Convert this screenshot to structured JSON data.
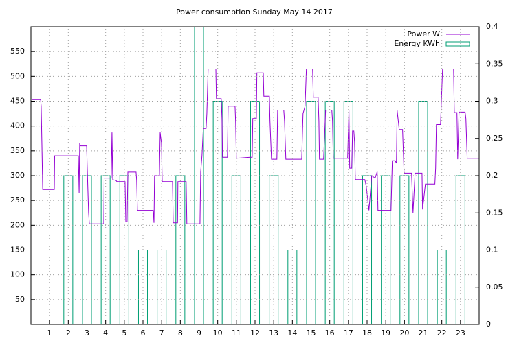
{
  "chart_data": {
    "type": "line",
    "title": "Power consumption Sunday May 14 2017",
    "xlim": [
      0,
      24
    ],
    "xticks": [
      1,
      2,
      3,
      4,
      5,
      6,
      7,
      8,
      9,
      10,
      11,
      12,
      13,
      14,
      15,
      16,
      17,
      18,
      19,
      20,
      21,
      22,
      23
    ],
    "ylim": [
      0,
      600
    ],
    "yticks": [
      50,
      100,
      150,
      200,
      250,
      300,
      350,
      400,
      450,
      500,
      550
    ],
    "y2lim": [
      0,
      0.4
    ],
    "y2ticks": [
      0,
      0.05,
      0.1,
      0.15,
      0.2,
      0.25,
      0.3,
      0.35,
      0.4
    ],
    "grid": true,
    "legend": "top-right",
    "series": [
      {
        "name": "Power W",
        "color": "#9400d3",
        "type": "line",
        "x": [
          0.04,
          0.52,
          0.55,
          0.59,
          0.63,
          1.25,
          1.27,
          2.54,
          2.58,
          2.61,
          2.65,
          2.98,
          3.05,
          3.09,
          3.13,
          3.9,
          3.92,
          4.3,
          4.34,
          4.38,
          4.56,
          4.6,
          5.04,
          5.08,
          5.15,
          5.19,
          5.63,
          5.66,
          5.7,
          6.55,
          6.59,
          6.62,
          6.88,
          6.92,
          6.99,
          7.03,
          7.58,
          7.62,
          7.85,
          7.87,
          8.31,
          8.35,
          9.05,
          9.09,
          9.16,
          9.23,
          9.38,
          9.42,
          9.49,
          9.9,
          9.93,
          10.19,
          10.23,
          10.26,
          10.52,
          10.56,
          10.93,
          10.96,
          11.0,
          11.74,
          11.85,
          11.88,
          12.07,
          12.1,
          12.44,
          12.47,
          12.77,
          12.8,
          12.88,
          13.17,
          13.21,
          13.54,
          13.58,
          13.65,
          14.5,
          14.57,
          14.68,
          14.75,
          15.08,
          15.12,
          15.38,
          15.42,
          15.45,
          15.67,
          15.78,
          16.11,
          16.15,
          16.19,
          16.96,
          17.03,
          17.07,
          17.18,
          17.22,
          17.29,
          17.33,
          17.37,
          17.88,
          17.95,
          18.1,
          18.25,
          18.43,
          18.54,
          18.58,
          19.28,
          19.35,
          19.5,
          19.57,
          19.61,
          19.72,
          19.9,
          19.98,
          20.38,
          20.46,
          20.57,
          20.94,
          20.97,
          21.12,
          21.63,
          21.67,
          21.71,
          21.93,
          22.04,
          22.63,
          22.67,
          22.81,
          22.85,
          22.92,
          23.25,
          23.29,
          23.36,
          24.0
        ],
        "values": [
          453,
          453,
          440,
          360,
          272,
          272,
          340,
          340,
          265,
          365,
          360,
          360,
          270,
          225,
          203,
          203,
          295,
          295,
          387,
          292,
          290,
          288,
          288,
          207,
          207,
          307,
          307,
          290,
          230,
          230,
          205,
          300,
          300,
          387,
          365,
          288,
          288,
          205,
          205,
          288,
          288,
          203,
          203,
          307,
          340,
          395,
          395,
          425,
          515,
          515,
          455,
          455,
          415,
          337,
          337,
          440,
          440,
          410,
          335,
          337,
          337,
          415,
          415,
          507,
          507,
          460,
          460,
          410,
          333,
          333,
          432,
          432,
          410,
          333,
          333,
          425,
          440,
          515,
          515,
          458,
          458,
          410,
          333,
          333,
          432,
          432,
          410,
          335,
          335,
          432,
          315,
          315,
          390,
          390,
          368,
          292,
          292,
          280,
          230,
          300,
          295,
          308,
          230,
          230,
          330,
          330,
          325,
          432,
          393,
          393,
          305,
          305,
          225,
          305,
          305,
          232,
          283,
          283,
          315,
          403,
          403,
          515,
          515,
          427,
          427,
          333,
          428,
          428,
          415,
          335,
          335
        ]
      },
      {
        "name": "Energy KWh",
        "color": "#009e73",
        "type": "bar",
        "axis": "y2",
        "x": [
          2,
          3,
          4,
          5,
          6,
          7,
          8,
          9,
          10,
          11,
          12,
          13,
          14,
          15,
          16,
          17,
          18,
          19,
          20,
          21,
          22,
          23
        ],
        "values": [
          0.2,
          0.2,
          0.2,
          0.2,
          0.1,
          0.1,
          0.2,
          0.4,
          0.3,
          0.2,
          0.3,
          0.2,
          0.1,
          0.3,
          0.3,
          0.3,
          0.2,
          0.2,
          0.2,
          0.3,
          0.1,
          0.2
        ]
      }
    ]
  }
}
